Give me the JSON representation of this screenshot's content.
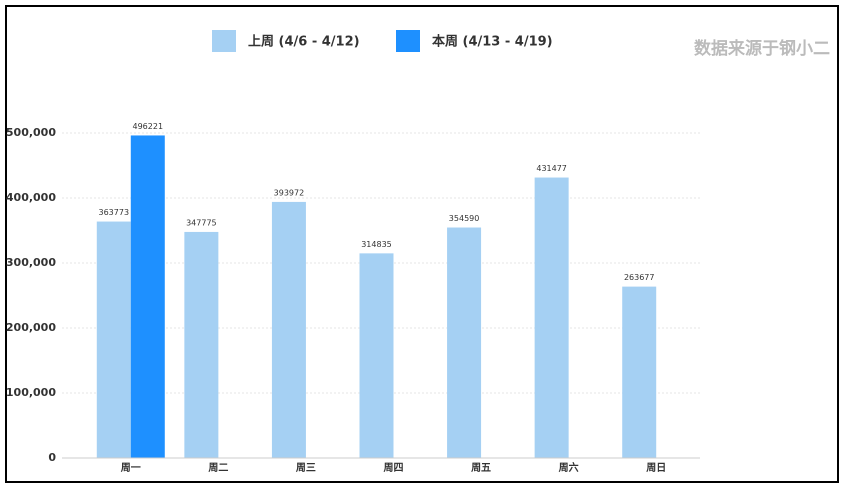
{
  "chart_data": {
    "type": "bar",
    "source": "数据来源于钢小二",
    "categories": [
      "周一",
      "周二",
      "周三",
      "周四",
      "周五",
      "周六",
      "周日"
    ],
    "series": [
      {
        "name": "上周 (4/6 - 4/12)",
        "color": "#a5d0f3",
        "values": [
          363773,
          347775,
          393972,
          314835,
          354590,
          431477,
          263677
        ]
      },
      {
        "name": "本周 (4/13 - 4/19)",
        "color": "#1e90ff",
        "values": [
          496221,
          null,
          null,
          null,
          null,
          null,
          null
        ]
      }
    ],
    "ylim": [
      0,
      500000
    ],
    "yticks": [
      0,
      {
        "value": 100000,
        "label": "100,000"
      },
      {
        "value": 200000,
        "label": "200,000"
      },
      {
        "value": 300000,
        "label": "300,000"
      },
      {
        "value": 400000,
        "label": "400,000"
      },
      {
        "value": 500000,
        "label": "500,000"
      }
    ],
    "grid": true
  }
}
